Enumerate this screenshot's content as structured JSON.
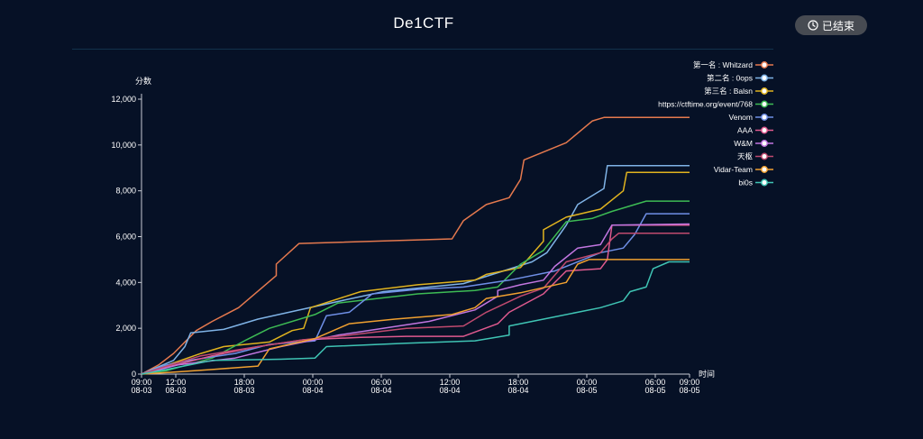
{
  "header": {
    "title": "De1CTF",
    "status_label": "已结束",
    "status_icon": "clock-icon"
  },
  "colors": {
    "background": "#061126",
    "axis": "#c8ccd4",
    "text": "#ffffff",
    "badge": "#474b52"
  },
  "chart_data": {
    "type": "line",
    "ylabel": "分数",
    "xlabel": "时间",
    "ylim": [
      0,
      12000
    ],
    "xlim": [
      "08-03 09:00",
      "08-05 09:00"
    ],
    "yticks": [
      0,
      2000,
      4000,
      6000,
      8000,
      10000,
      12000
    ],
    "ytick_labels": [
      "0",
      "2,000",
      "4,000",
      "6,000",
      "8,000",
      "10,000",
      "12,000"
    ],
    "xticks": [
      {
        "time": "09:00",
        "date": "08-03",
        "hours": 0
      },
      {
        "time": "12:00",
        "date": "08-03",
        "hours": 3
      },
      {
        "time": "18:00",
        "date": "08-03",
        "hours": 9
      },
      {
        "time": "00:00",
        "date": "08-04",
        "hours": 15
      },
      {
        "time": "06:00",
        "date": "08-04",
        "hours": 21
      },
      {
        "time": "12:00",
        "date": "08-04",
        "hours": 27
      },
      {
        "time": "18:00",
        "date": "08-04",
        "hours": 33
      },
      {
        "time": "00:00",
        "date": "08-05",
        "hours": 39
      },
      {
        "time": "06:00",
        "date": "08-05",
        "hours": 45
      },
      {
        "time": "09:00",
        "date": "08-05",
        "hours": 48
      }
    ],
    "legend_position": "top-right",
    "grid": false,
    "series": [
      {
        "name": "第一名 : Whitzard",
        "color": "#e5794e",
        "points": [
          [
            0,
            0
          ],
          [
            1.5,
            400
          ],
          [
            2.8,
            900
          ],
          [
            4.8,
            1900
          ],
          [
            6.2,
            2300
          ],
          [
            8.5,
            2900
          ],
          [
            11.8,
            4300
          ],
          [
            11.8,
            4800
          ],
          [
            13.8,
            5700
          ],
          [
            27.2,
            5900
          ],
          [
            28.2,
            6700
          ],
          [
            30.2,
            7400
          ],
          [
            32.2,
            7700
          ],
          [
            33.2,
            8500
          ],
          [
            33.5,
            9350
          ],
          [
            37.2,
            10100
          ],
          [
            39.5,
            11050
          ],
          [
            40.5,
            11200
          ],
          [
            48,
            11200
          ]
        ]
      },
      {
        "name": "第二名 : 0ops",
        "color": "#7fb3e6",
        "points": [
          [
            0,
            0
          ],
          [
            2.8,
            600
          ],
          [
            3.8,
            1200
          ],
          [
            4.3,
            1800
          ],
          [
            7.2,
            1950
          ],
          [
            10.2,
            2400
          ],
          [
            15.2,
            2950
          ],
          [
            21.2,
            3600
          ],
          [
            28.2,
            3950
          ],
          [
            34.2,
            4900
          ],
          [
            35.5,
            5300
          ],
          [
            37.2,
            6500
          ],
          [
            38.2,
            7400
          ],
          [
            40.5,
            8100
          ],
          [
            40.8,
            9100
          ],
          [
            48,
            9100
          ]
        ]
      },
      {
        "name": "第三名 : Balsn",
        "color": "#e0b31f",
        "points": [
          [
            0,
            0
          ],
          [
            5.2,
            900
          ],
          [
            7.2,
            1200
          ],
          [
            11.2,
            1400
          ],
          [
            13.2,
            1900
          ],
          [
            14.2,
            2000
          ],
          [
            14.8,
            2900
          ],
          [
            19.2,
            3600
          ],
          [
            24.2,
            3900
          ],
          [
            29.2,
            4100
          ],
          [
            30.2,
            4350
          ],
          [
            33.2,
            4650
          ],
          [
            35.2,
            5800
          ],
          [
            35.2,
            6300
          ],
          [
            37.2,
            6850
          ],
          [
            40.2,
            7200
          ],
          [
            42.2,
            8000
          ],
          [
            42.5,
            8800
          ],
          [
            48,
            8800
          ]
        ]
      },
      {
        "name": "https://ctftime.org/event/768",
        "color": "#3dbb54",
        "points": [
          [
            0,
            0
          ],
          [
            2.2,
            150
          ],
          [
            6.2,
            700
          ],
          [
            9.2,
            1500
          ],
          [
            11.2,
            2000
          ],
          [
            15.2,
            2600
          ],
          [
            17.2,
            3100
          ],
          [
            24.2,
            3500
          ],
          [
            29.2,
            3650
          ],
          [
            31.2,
            3800
          ],
          [
            33.2,
            4800
          ],
          [
            35.2,
            5400
          ],
          [
            37.2,
            6650
          ],
          [
            39.5,
            6800
          ],
          [
            41.2,
            7100
          ],
          [
            44.2,
            7550
          ],
          [
            48,
            7550
          ]
        ]
      },
      {
        "name": "Venom",
        "color": "#6f8fe6",
        "points": [
          [
            0,
            0
          ],
          [
            2.2,
            400
          ],
          [
            4.2,
            600
          ],
          [
            8.2,
            900
          ],
          [
            11.2,
            1300
          ],
          [
            15.2,
            1450
          ],
          [
            16.2,
            2550
          ],
          [
            18.2,
            2700
          ],
          [
            20.2,
            3500
          ],
          [
            24.2,
            3700
          ],
          [
            28.2,
            3800
          ],
          [
            32.2,
            4100
          ],
          [
            36.2,
            4500
          ],
          [
            40.2,
            5300
          ],
          [
            42.2,
            5500
          ],
          [
            43.2,
            6100
          ],
          [
            44.2,
            7000
          ],
          [
            48,
            7000
          ]
        ]
      },
      {
        "name": "AAA",
        "color": "#e05a8f",
        "points": [
          [
            0,
            0
          ],
          [
            2.2,
            300
          ],
          [
            6.2,
            800
          ],
          [
            10.2,
            1200
          ],
          [
            14.2,
            1500
          ],
          [
            19.2,
            1600
          ],
          [
            23.2,
            1650
          ],
          [
            28.2,
            1650
          ],
          [
            31.2,
            2200
          ],
          [
            32.2,
            2700
          ],
          [
            35.2,
            3500
          ],
          [
            37.2,
            4500
          ],
          [
            40.2,
            4600
          ],
          [
            40.8,
            5000
          ],
          [
            41.2,
            6500
          ],
          [
            48,
            6500
          ]
        ]
      },
      {
        "name": "W&M",
        "color": "#c276e0",
        "points": [
          [
            0,
            0
          ],
          [
            3.2,
            400
          ],
          [
            8.2,
            700
          ],
          [
            12.2,
            1200
          ],
          [
            17.2,
            1700
          ],
          [
            25.2,
            2300
          ],
          [
            29.2,
            2800
          ],
          [
            31.2,
            3400
          ],
          [
            31.2,
            3650
          ],
          [
            33.2,
            3900
          ],
          [
            35.2,
            4100
          ],
          [
            36.2,
            4700
          ],
          [
            38.2,
            5500
          ],
          [
            40.2,
            5650
          ],
          [
            41.2,
            6500
          ],
          [
            48,
            6550
          ]
        ]
      },
      {
        "name": "天枢",
        "color": "#c04a6f",
        "points": [
          [
            0,
            0
          ],
          [
            2.2,
            350
          ],
          [
            5.2,
            800
          ],
          [
            10.2,
            1200
          ],
          [
            14.2,
            1500
          ],
          [
            18.2,
            1700
          ],
          [
            23.2,
            2000
          ],
          [
            28.2,
            2100
          ],
          [
            30.2,
            2700
          ],
          [
            33.2,
            3400
          ],
          [
            35.2,
            3750
          ],
          [
            37.2,
            4900
          ],
          [
            40.2,
            5300
          ],
          [
            41.2,
            5900
          ],
          [
            41.8,
            6150
          ],
          [
            48,
            6150
          ]
        ]
      },
      {
        "name": "Vidar-Team",
        "color": "#f0a030",
        "points": [
          [
            0,
            0
          ],
          [
            3.2,
            100
          ],
          [
            6.2,
            200
          ],
          [
            10.2,
            350
          ],
          [
            11.2,
            1100
          ],
          [
            15.2,
            1550
          ],
          [
            18.2,
            2200
          ],
          [
            22.2,
            2400
          ],
          [
            27.2,
            2600
          ],
          [
            29.2,
            2900
          ],
          [
            30.2,
            3300
          ],
          [
            33.2,
            3550
          ],
          [
            37.2,
            4000
          ],
          [
            38.2,
            4800
          ],
          [
            39.2,
            5000
          ],
          [
            48,
            5000
          ]
        ]
      },
      {
        "name": "bi0s",
        "color": "#3fc4b4",
        "points": [
          [
            0,
            0
          ],
          [
            2.2,
            200
          ],
          [
            6.2,
            600
          ],
          [
            12.2,
            650
          ],
          [
            15.2,
            700
          ],
          [
            16.2,
            1200
          ],
          [
            23.2,
            1350
          ],
          [
            29.2,
            1450
          ],
          [
            32.2,
            1700
          ],
          [
            32.2,
            2100
          ],
          [
            36.2,
            2500
          ],
          [
            40.2,
            2900
          ],
          [
            42.2,
            3200
          ],
          [
            42.8,
            3600
          ],
          [
            44.2,
            3800
          ],
          [
            44.8,
            4600
          ],
          [
            46.2,
            4900
          ],
          [
            48,
            4900
          ]
        ]
      }
    ]
  }
}
